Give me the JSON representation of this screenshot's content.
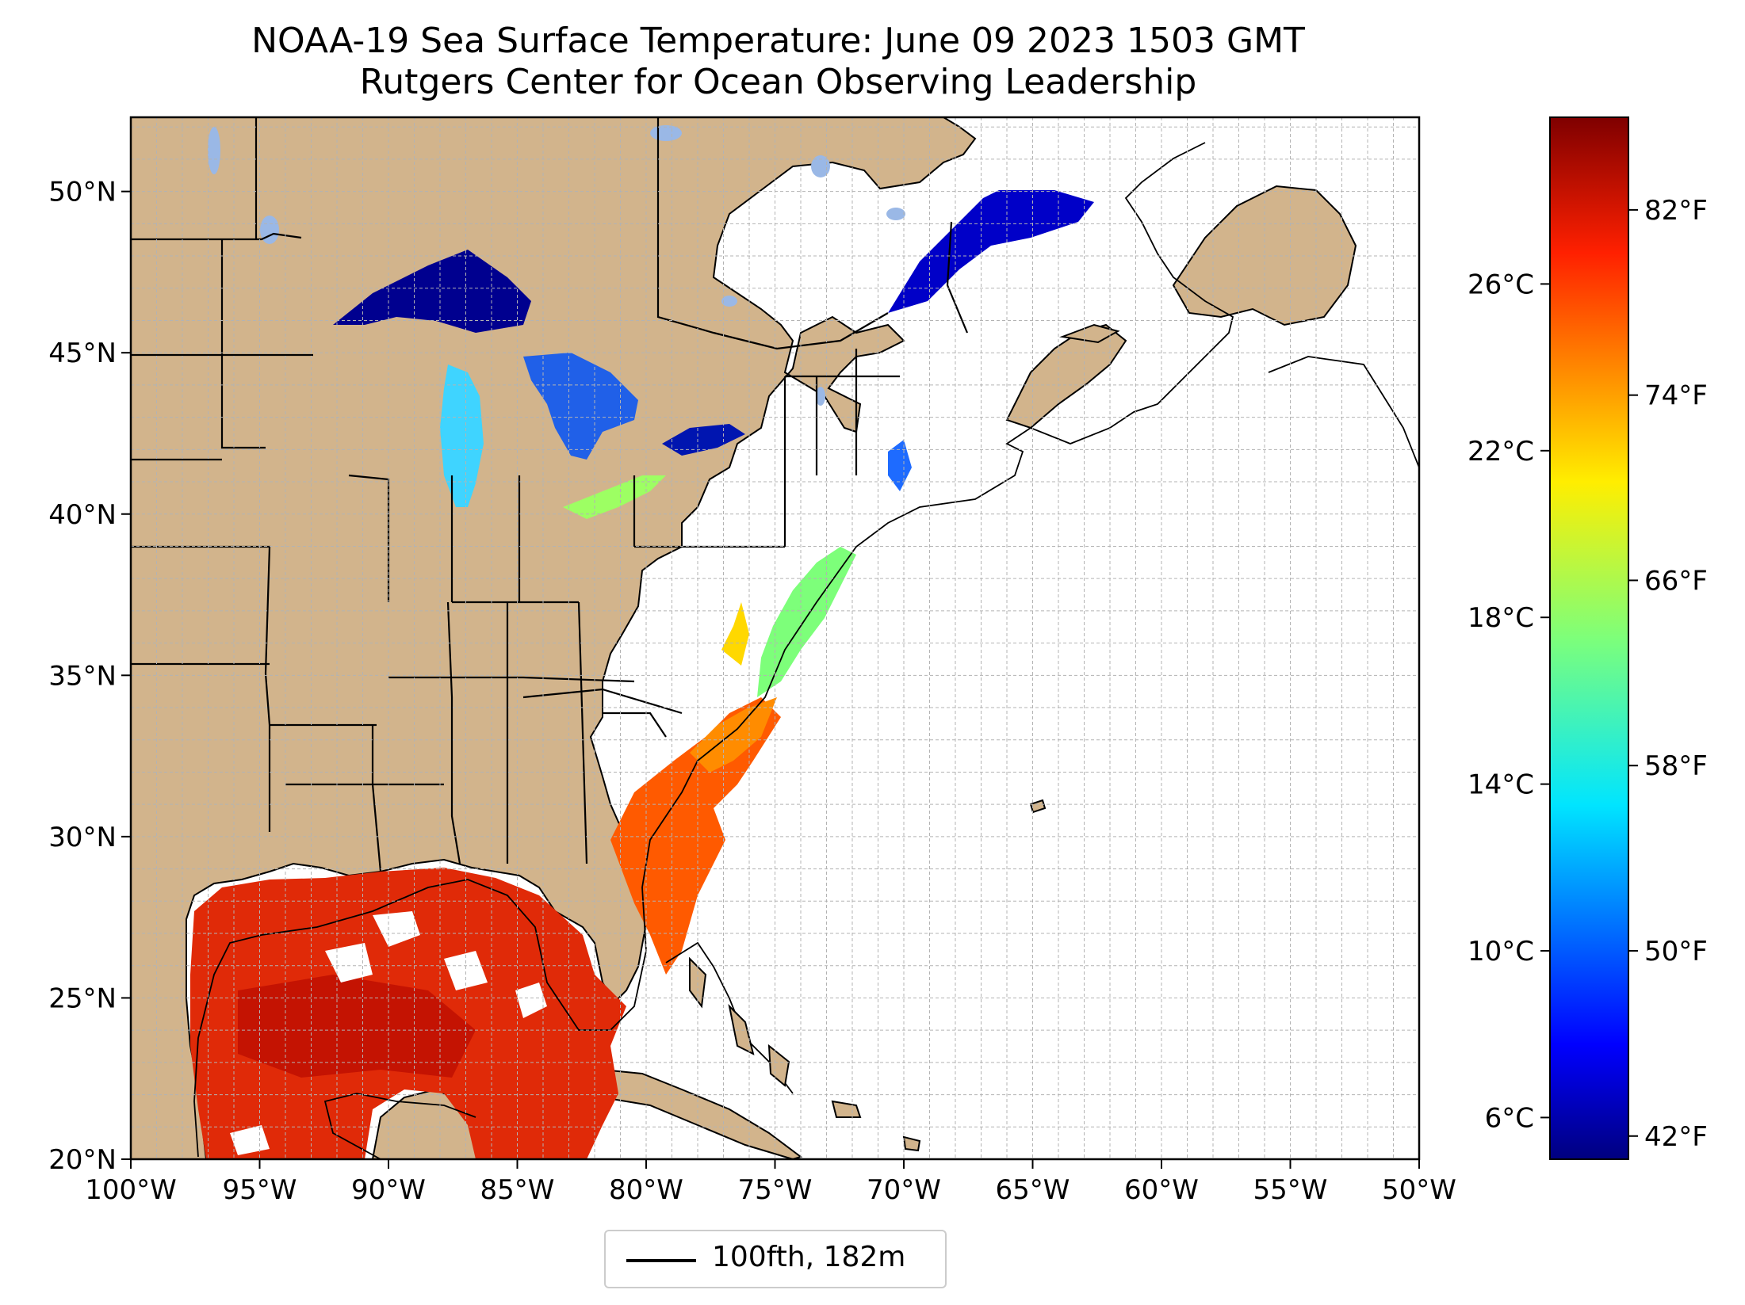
{
  "title": {
    "line1": "NOAA-19 Sea Surface Temperature: June 09 2023 1503 GMT",
    "line2": "Rutgers Center for Ocean Observing Leadership"
  },
  "map": {
    "lon_range": [
      -100,
      -50
    ],
    "lat_range": [
      20,
      52.3
    ],
    "gridlines": true,
    "land_color": "#d2b48c",
    "lakes_no_data_color": "#9ab8e6",
    "boundary_color": "#000000",
    "x_ticks": [
      {
        "value": -100,
        "label": "100°W"
      },
      {
        "value": -95,
        "label": "95°W"
      },
      {
        "value": -90,
        "label": "90°W"
      },
      {
        "value": -85,
        "label": "85°W"
      },
      {
        "value": -80,
        "label": "80°W"
      },
      {
        "value": -75,
        "label": "75°W"
      },
      {
        "value": -70,
        "label": "70°W"
      },
      {
        "value": -65,
        "label": "65°W"
      },
      {
        "value": -60,
        "label": "60°W"
      },
      {
        "value": -55,
        "label": "55°W"
      },
      {
        "value": -50,
        "label": "50°W"
      }
    ],
    "y_ticks": [
      {
        "value": 20,
        "label": "20°N"
      },
      {
        "value": 25,
        "label": "25°N"
      },
      {
        "value": 30,
        "label": "30°N"
      },
      {
        "value": 35,
        "label": "35°N"
      },
      {
        "value": 40,
        "label": "40°N"
      },
      {
        "value": 45,
        "label": "45°N"
      },
      {
        "value": 50,
        "label": "50°N"
      }
    ]
  },
  "colorbar": {
    "colormap": "jet",
    "celsius_range": [
      5,
      30
    ],
    "celsius_ticks": [
      {
        "value": 6,
        "label": "6°C"
      },
      {
        "value": 10,
        "label": "10°C"
      },
      {
        "value": 14,
        "label": "14°C"
      },
      {
        "value": 18,
        "label": "18°C"
      },
      {
        "value": 22,
        "label": "22°C"
      },
      {
        "value": 26,
        "label": "26°C"
      }
    ],
    "fahrenheit_ticks": [
      {
        "value": 42,
        "label": "42°F"
      },
      {
        "value": 50,
        "label": "50°F"
      },
      {
        "value": 58,
        "label": "58°F"
      },
      {
        "value": 66,
        "label": "66°F"
      },
      {
        "value": 74,
        "label": "74°F"
      },
      {
        "value": 82,
        "label": "82°F"
      }
    ]
  },
  "legend": {
    "label": "100fth, 182m"
  }
}
